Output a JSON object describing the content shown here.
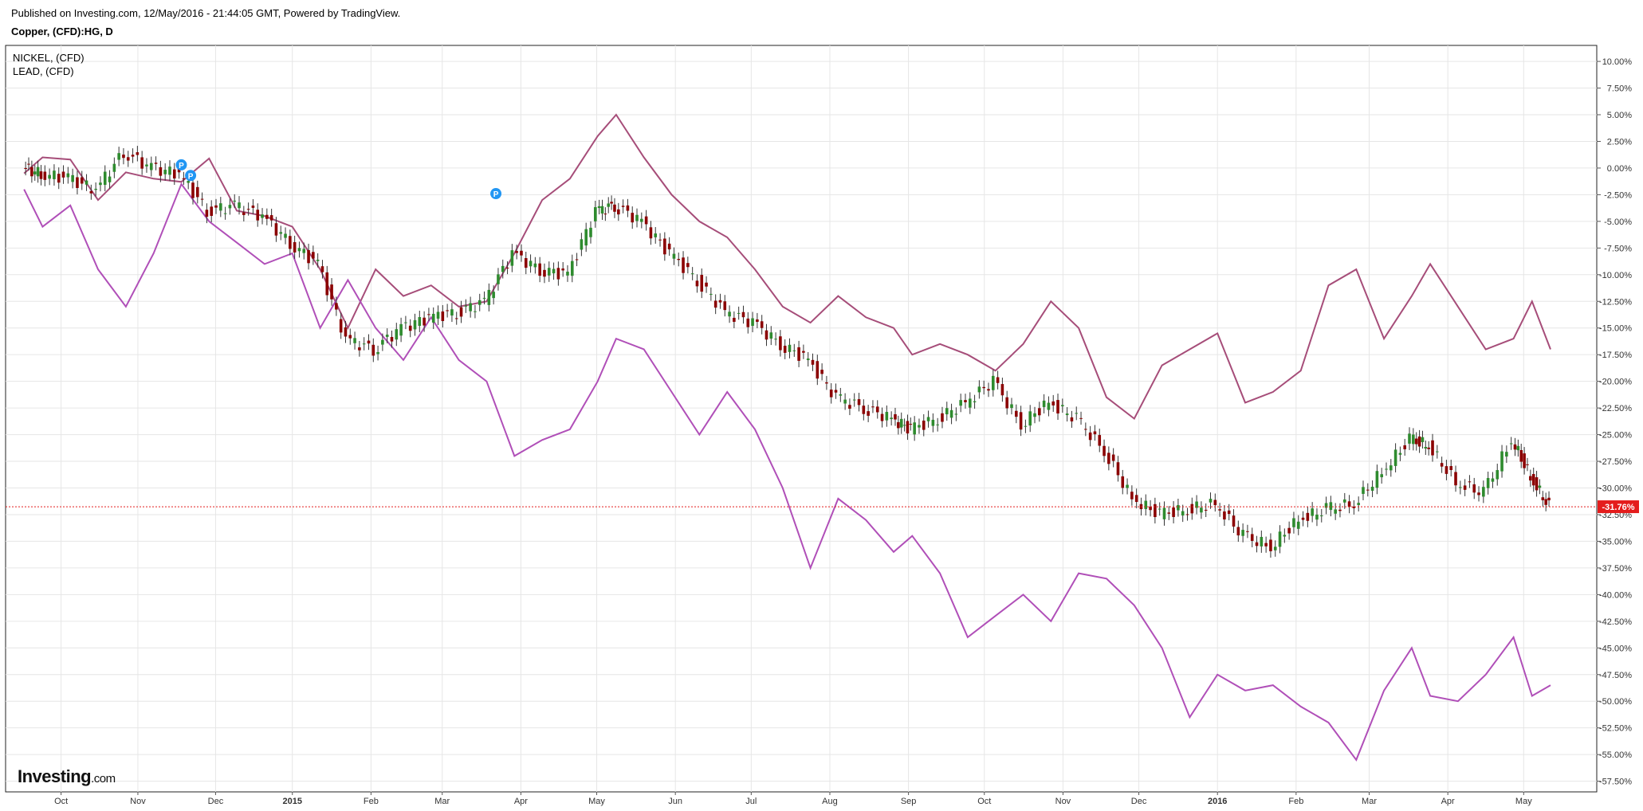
{
  "header": {
    "published": "Published on Investing.com, 12/May/2016 - 21:44:05 GMT, Powered by TradingView.",
    "title": "Copper, (CFD):HG, D"
  },
  "legend": [
    "NICKEL,  (CFD)",
    "LEAD,  (CFD)"
  ],
  "logo": {
    "main": "Investing",
    "suffix": ".com"
  },
  "colors": {
    "up": "#2e8b2e",
    "down": "#8b0000",
    "nickel": "#a64d79",
    "lead": "#b04fb8",
    "current": "#e41c1c",
    "marker": "#2196f3",
    "grid": "#e6e6e6"
  },
  "chart_data": {
    "type": "line",
    "y_unit": "percent change",
    "ylim": [
      -58.5,
      11.5
    ],
    "grid": true,
    "legend_position": "top-left",
    "y_ticks": [
      "10.00%",
      "7.50%",
      "5.00%",
      "2.50%",
      "0.00%",
      "-2.50%",
      "-5.00%",
      "-7.50%",
      "-10.00%",
      "-12.50%",
      "-15.00%",
      "-17.50%",
      "-20.00%",
      "-22.50%",
      "-25.00%",
      "-27.50%",
      "-30.00%",
      "-32.50%",
      "-35.00%",
      "-37.50%",
      "-40.00%",
      "-42.50%",
      "-45.00%",
      "-47.50%",
      "-50.00%",
      "-52.50%",
      "-55.00%",
      "-57.50%"
    ],
    "x_ticks": [
      "Oct",
      "Nov",
      "Dec",
      "2015",
      "Feb",
      "Mar",
      "Apr",
      "May",
      "Jun",
      "Jul",
      "Aug",
      "Sep",
      "Oct",
      "Nov",
      "Dec",
      "2016",
      "Feb",
      "Mar",
      "Apr",
      "May"
    ],
    "x_tick_bold": [
      "2015",
      "2016"
    ],
    "current_value": -31.76,
    "current_label": "-31.76%",
    "markers": [
      {
        "label": "P",
        "x": 2014.88,
        "y": 0.3
      },
      {
        "label": "P",
        "x": 2014.89,
        "y": -0.7
      },
      {
        "label": "P",
        "x": 2015.22,
        "y": -2.4
      }
    ],
    "series": [
      {
        "name": "NICKEL,  (CFD)",
        "values": [
          [
            2014.71,
            -0.5
          ],
          [
            2014.73,
            1.0
          ],
          [
            2014.76,
            0.8
          ],
          [
            2014.79,
            -3.0
          ],
          [
            2014.82,
            -0.4
          ],
          [
            2014.85,
            -1.0
          ],
          [
            2014.88,
            -1.3
          ],
          [
            2014.91,
            0.9
          ],
          [
            2014.94,
            -4.0
          ],
          [
            2014.97,
            -4.5
          ],
          [
            2015.0,
            -5.5
          ],
          [
            2015.03,
            -9.5
          ],
          [
            2015.06,
            -15.0
          ],
          [
            2015.09,
            -9.5
          ],
          [
            2015.12,
            -12.0
          ],
          [
            2015.15,
            -11.0
          ],
          [
            2015.18,
            -13.0
          ],
          [
            2015.21,
            -12.5
          ],
          [
            2015.24,
            -8.0
          ],
          [
            2015.27,
            -3.0
          ],
          [
            2015.3,
            -1.0
          ],
          [
            2015.33,
            3.0
          ],
          [
            2015.35,
            5.0
          ],
          [
            2015.38,
            1.0
          ],
          [
            2015.41,
            -2.5
          ],
          [
            2015.44,
            -5.0
          ],
          [
            2015.47,
            -6.5
          ],
          [
            2015.5,
            -9.5
          ],
          [
            2015.53,
            -13.0
          ],
          [
            2015.56,
            -14.5
          ],
          [
            2015.59,
            -12.0
          ],
          [
            2015.62,
            -14.0
          ],
          [
            2015.65,
            -15.0
          ],
          [
            2015.67,
            -17.5
          ],
          [
            2015.7,
            -16.5
          ],
          [
            2015.73,
            -17.5
          ],
          [
            2015.76,
            -19.0
          ],
          [
            2015.79,
            -16.5
          ],
          [
            2015.82,
            -12.5
          ],
          [
            2015.85,
            -15.0
          ],
          [
            2015.88,
            -21.5
          ],
          [
            2015.91,
            -23.5
          ],
          [
            2015.94,
            -18.5
          ],
          [
            2015.97,
            -17.0
          ],
          [
            2016.0,
            -15.5
          ],
          [
            2016.03,
            -22.0
          ],
          [
            2016.06,
            -21.0
          ],
          [
            2016.09,
            -19.0
          ],
          [
            2016.12,
            -11.0
          ],
          [
            2016.15,
            -9.5
          ],
          [
            2016.18,
            -16.0
          ],
          [
            2016.21,
            -12.0
          ],
          [
            2016.23,
            -9.0
          ],
          [
            2016.26,
            -13.0
          ],
          [
            2016.29,
            -17.0
          ],
          [
            2016.32,
            -16.0
          ],
          [
            2016.34,
            -12.5
          ],
          [
            2016.36,
            -17.0
          ]
        ]
      },
      {
        "name": "LEAD,  (CFD)",
        "values": [
          [
            2014.71,
            -2.0
          ],
          [
            2014.73,
            -5.5
          ],
          [
            2014.76,
            -3.5
          ],
          [
            2014.79,
            -9.5
          ],
          [
            2014.82,
            -13.0
          ],
          [
            2014.85,
            -8.0
          ],
          [
            2014.88,
            -1.5
          ],
          [
            2014.91,
            -5.0
          ],
          [
            2014.94,
            -7.0
          ],
          [
            2014.97,
            -9.0
          ],
          [
            2015.0,
            -8.0
          ],
          [
            2015.03,
            -15.0
          ],
          [
            2015.06,
            -10.5
          ],
          [
            2015.09,
            -15.0
          ],
          [
            2015.12,
            -18.0
          ],
          [
            2015.15,
            -14.0
          ],
          [
            2015.18,
            -18.0
          ],
          [
            2015.21,
            -20.0
          ],
          [
            2015.24,
            -27.0
          ],
          [
            2015.27,
            -25.5
          ],
          [
            2015.3,
            -24.5
          ],
          [
            2015.33,
            -20.0
          ],
          [
            2015.35,
            -16.0
          ],
          [
            2015.38,
            -17.0
          ],
          [
            2015.41,
            -21.0
          ],
          [
            2015.44,
            -25.0
          ],
          [
            2015.47,
            -21.0
          ],
          [
            2015.5,
            -24.5
          ],
          [
            2015.53,
            -30.0
          ],
          [
            2015.56,
            -37.5
          ],
          [
            2015.59,
            -31.0
          ],
          [
            2015.62,
            -33.0
          ],
          [
            2015.65,
            -36.0
          ],
          [
            2015.67,
            -34.5
          ],
          [
            2015.7,
            -38.0
          ],
          [
            2015.73,
            -44.0
          ],
          [
            2015.76,
            -42.0
          ],
          [
            2015.79,
            -40.0
          ],
          [
            2015.82,
            -42.5
          ],
          [
            2015.85,
            -38.0
          ],
          [
            2015.88,
            -38.5
          ],
          [
            2015.91,
            -41.0
          ],
          [
            2015.94,
            -45.0
          ],
          [
            2015.97,
            -51.5
          ],
          [
            2016.0,
            -47.5
          ],
          [
            2016.03,
            -49.0
          ],
          [
            2016.06,
            -48.5
          ],
          [
            2016.09,
            -50.5
          ],
          [
            2016.12,
            -52.0
          ],
          [
            2016.15,
            -55.5
          ],
          [
            2016.18,
            -49.0
          ],
          [
            2016.21,
            -45.0
          ],
          [
            2016.23,
            -49.5
          ],
          [
            2016.26,
            -50.0
          ],
          [
            2016.29,
            -47.5
          ],
          [
            2016.32,
            -44.0
          ],
          [
            2016.34,
            -49.5
          ],
          [
            2016.36,
            -48.5
          ]
        ]
      },
      {
        "name": "Copper, (CFD):HG, D",
        "style": "candlestick",
        "values": [
          [
            2014.71,
            0.0
          ],
          [
            2014.73,
            -0.5
          ],
          [
            2014.76,
            -1.0
          ],
          [
            2014.79,
            -2.0
          ],
          [
            2014.82,
            1.5
          ],
          [
            2014.85,
            0.0
          ],
          [
            2014.88,
            -0.5
          ],
          [
            2014.91,
            -4.0
          ],
          [
            2014.94,
            -3.5
          ],
          [
            2014.97,
            -4.5
          ],
          [
            2015.0,
            -7.0
          ],
          [
            2015.03,
            -9.0
          ],
          [
            2015.06,
            -16.0
          ],
          [
            2015.09,
            -17.0
          ],
          [
            2015.12,
            -15.0
          ],
          [
            2015.15,
            -14.0
          ],
          [
            2015.18,
            -13.5
          ],
          [
            2015.21,
            -12.5
          ],
          [
            2015.24,
            -8.0
          ],
          [
            2015.27,
            -9.5
          ],
          [
            2015.3,
            -10.0
          ],
          [
            2015.33,
            -4.0
          ],
          [
            2015.35,
            -3.5
          ],
          [
            2015.38,
            -5.0
          ],
          [
            2015.41,
            -8.0
          ],
          [
            2015.44,
            -10.5
          ],
          [
            2015.47,
            -13.5
          ],
          [
            2015.5,
            -14.5
          ],
          [
            2015.53,
            -16.5
          ],
          [
            2015.56,
            -18.0
          ],
          [
            2015.59,
            -21.5
          ],
          [
            2015.62,
            -22.5
          ],
          [
            2015.65,
            -23.5
          ],
          [
            2015.67,
            -24.5
          ],
          [
            2015.7,
            -23.5
          ],
          [
            2015.73,
            -22.0
          ],
          [
            2015.76,
            -20.0
          ],
          [
            2015.79,
            -24.0
          ],
          [
            2015.82,
            -22.0
          ],
          [
            2015.85,
            -23.5
          ],
          [
            2015.88,
            -26.5
          ],
          [
            2015.91,
            -31.0
          ],
          [
            2015.94,
            -32.5
          ],
          [
            2015.97,
            -32.0
          ],
          [
            2016.0,
            -31.5
          ],
          [
            2016.03,
            -34.5
          ],
          [
            2016.06,
            -35.5
          ],
          [
            2016.09,
            -33.0
          ],
          [
            2016.12,
            -32.0
          ],
          [
            2016.15,
            -31.5
          ],
          [
            2016.18,
            -28.5
          ],
          [
            2016.21,
            -25.5
          ],
          [
            2016.23,
            -26.0
          ],
          [
            2016.26,
            -29.5
          ],
          [
            2016.29,
            -30.5
          ],
          [
            2016.32,
            -25.5
          ],
          [
            2016.34,
            -29.0
          ],
          [
            2016.36,
            -31.76
          ]
        ]
      }
    ]
  }
}
